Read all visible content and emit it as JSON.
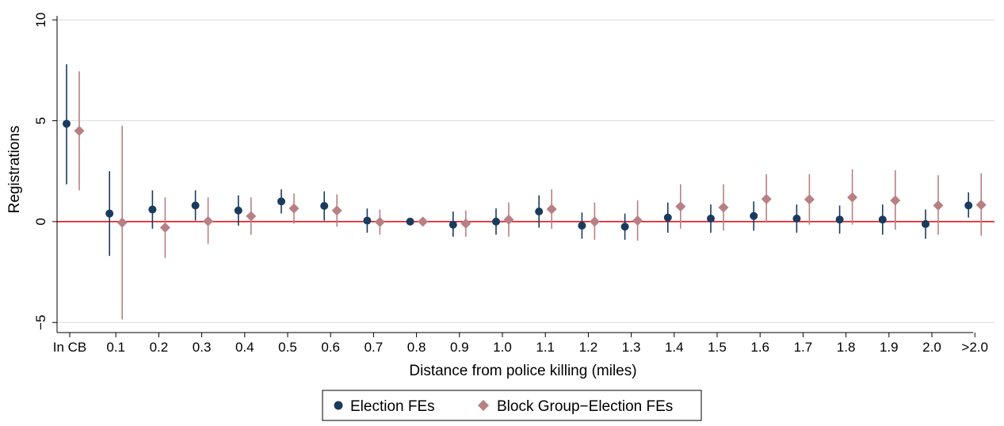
{
  "chart_data": {
    "type": "scatter",
    "title": "",
    "xlabel": "Distance from police killing (miles)",
    "ylabel": "Registrations",
    "categories": [
      "In CB",
      "0.1",
      "0.2",
      "0.3",
      "0.4",
      "0.5",
      "0.6",
      "0.7",
      "0.8",
      "0.9",
      "1.0",
      "1.1",
      "1.2",
      "1.3",
      "1.4",
      "1.5",
      "1.6",
      "1.7",
      "1.8",
      "1.9",
      "2.0",
      ">2.0"
    ],
    "ylim": [
      -5.5,
      10.2
    ],
    "yticks": [
      -5,
      0,
      5,
      10
    ],
    "reference_line": 0,
    "grid": true,
    "legend_position": "bottom",
    "colors": {
      "election": "#1a3b5d",
      "blockgroup": "#b88084",
      "reference": "#e8000b",
      "grid": "#dcdcdc"
    },
    "series": [
      {
        "name": "Election FEs",
        "marker": "circle",
        "values": [
          4.85,
          0.4,
          0.6,
          0.8,
          0.55,
          1.0,
          0.78,
          0.05,
          0.0,
          -0.15,
          0.0,
          0.5,
          -0.2,
          -0.25,
          0.2,
          0.15,
          0.28,
          0.15,
          0.1,
          0.1,
          -0.12,
          0.8
        ],
        "lower": [
          1.85,
          -1.7,
          -0.35,
          0.05,
          -0.2,
          0.4,
          0.05,
          -0.55,
          0.0,
          -0.75,
          -0.65,
          -0.3,
          -0.85,
          -0.9,
          -0.55,
          -0.55,
          -0.45,
          -0.55,
          -0.6,
          -0.65,
          -0.85,
          0.2
        ],
        "upper": [
          7.8,
          2.5,
          1.55,
          1.55,
          1.3,
          1.6,
          1.5,
          0.65,
          0.0,
          0.5,
          0.65,
          1.3,
          0.45,
          0.4,
          0.95,
          0.85,
          1.0,
          0.85,
          0.8,
          0.85,
          0.6,
          1.45
        ]
      },
      {
        "name": "Block Group−Election FEs",
        "marker": "diamond",
        "values": [
          4.5,
          -0.05,
          -0.3,
          0.02,
          0.27,
          0.65,
          0.55,
          -0.02,
          0.0,
          -0.1,
          0.1,
          0.62,
          0.0,
          0.05,
          0.75,
          0.7,
          1.12,
          1.1,
          1.2,
          1.05,
          0.8,
          0.83
        ],
        "lower": [
          1.55,
          -4.85,
          -1.8,
          -1.1,
          -0.65,
          -0.1,
          -0.25,
          -0.65,
          0.0,
          -0.75,
          -0.75,
          -0.35,
          -0.9,
          -0.95,
          -0.35,
          -0.45,
          -0.05,
          -0.15,
          -0.15,
          -0.4,
          -0.65,
          -0.7
        ],
        "upper": [
          7.45,
          4.75,
          1.2,
          1.2,
          1.2,
          1.4,
          1.35,
          0.6,
          0.0,
          0.55,
          0.95,
          1.6,
          0.95,
          1.05,
          1.85,
          1.85,
          2.35,
          2.35,
          2.6,
          2.55,
          2.3,
          2.4
        ]
      }
    ]
  }
}
